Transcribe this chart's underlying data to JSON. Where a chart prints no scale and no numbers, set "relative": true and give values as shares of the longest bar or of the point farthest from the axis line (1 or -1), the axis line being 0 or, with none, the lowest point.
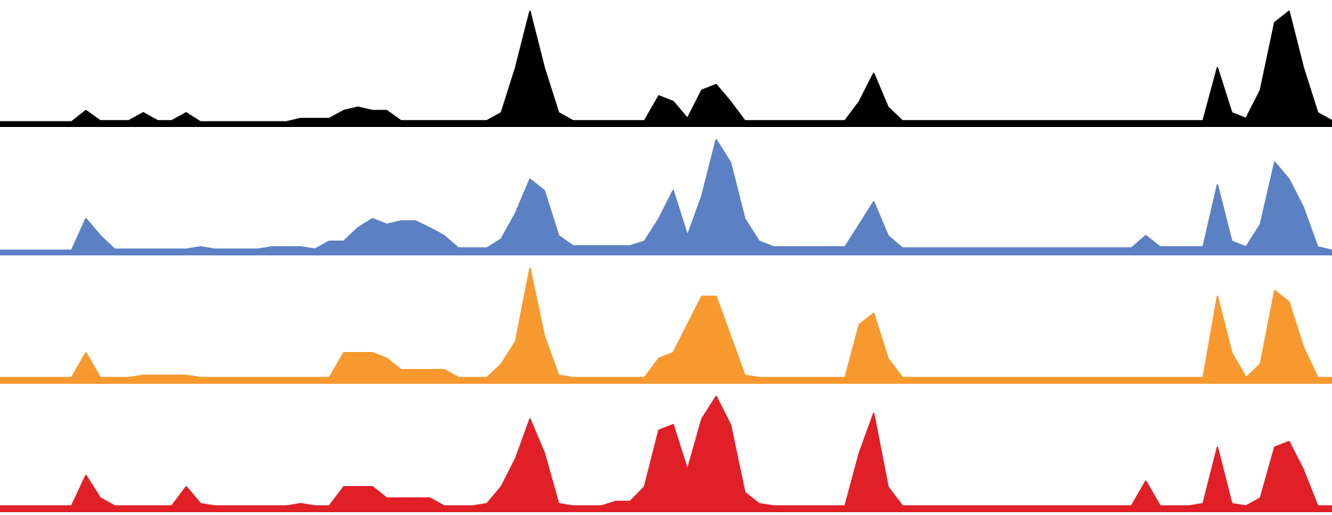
{
  "chart_data": [
    {
      "type": "area",
      "relative": true,
      "color": "#000000",
      "categories": [
        null,
        null,
        null,
        null,
        null,
        null,
        null,
        null,
        null,
        null,
        null,
        null,
        null,
        null,
        null,
        null,
        null,
        null,
        null,
        null,
        null,
        null,
        null,
        null,
        null,
        null,
        null,
        null,
        null,
        null,
        null,
        null,
        null,
        null,
        null,
        null,
        null,
        null,
        null,
        null,
        null,
        null,
        null,
        null,
        null,
        null,
        null,
        null,
        null,
        null,
        null,
        null,
        null,
        null,
        null,
        null,
        null,
        null,
        null,
        null,
        null,
        null,
        null,
        null,
        null,
        null,
        null,
        null,
        null,
        null,
        null,
        null,
        null,
        null,
        null,
        null,
        null,
        null,
        null,
        null,
        null,
        null,
        null,
        null,
        null,
        null,
        null,
        null,
        null,
        null,
        null,
        null,
        null,
        null
      ],
      "values": [
        0.02,
        0.02,
        0.02,
        0.02,
        0.02,
        0.02,
        0.12,
        0.03,
        0.03,
        0.03,
        0.1,
        0.03,
        0.03,
        0.1,
        0.02,
        0.02,
        0.02,
        0.02,
        0.02,
        0.02,
        0.02,
        0.05,
        0.05,
        0.05,
        0.12,
        0.15,
        0.12,
        0.12,
        0.03,
        0.03,
        0.03,
        0.03,
        0.03,
        0.03,
        0.03,
        0.1,
        0.5,
        1,
        0.5,
        0.1,
        0.03,
        0.03,
        0.03,
        0.03,
        0.03,
        0.03,
        0.25,
        0.2,
        0.05,
        0.3,
        0.35,
        0.2,
        0.03,
        0.03,
        0.03,
        0.03,
        0.03,
        0.03,
        0.03,
        0.03,
        0.2,
        0.45,
        0.15,
        0.03,
        0.03,
        0.03,
        0.03,
        0.03,
        0.03,
        0.03,
        0.03,
        0.03,
        0.03,
        0.03,
        0.03,
        0.03,
        0.03,
        0.03,
        0.03,
        0.03,
        0.03,
        0.03,
        0.03,
        0.03,
        0.03,
        0.5,
        0.1,
        0.05,
        0.3,
        0.9,
        1,
        0.5,
        0.1,
        0.03
      ]
    },
    {
      "type": "area",
      "relative": true,
      "color": "#5b80c3",
      "categories": [
        null,
        null,
        null,
        null,
        null,
        null,
        null,
        null,
        null,
        null,
        null,
        null,
        null,
        null,
        null,
        null,
        null,
        null,
        null,
        null,
        null,
        null,
        null,
        null,
        null,
        null,
        null,
        null,
        null,
        null,
        null,
        null,
        null,
        null,
        null,
        null,
        null,
        null,
        null,
        null,
        null,
        null,
        null,
        null,
        null,
        null,
        null,
        null,
        null,
        null,
        null,
        null,
        null,
        null,
        null,
        null,
        null,
        null,
        null,
        null,
        null,
        null,
        null,
        null,
        null,
        null,
        null,
        null,
        null,
        null,
        null,
        null,
        null,
        null,
        null,
        null,
        null,
        null,
        null,
        null,
        null,
        null,
        null,
        null,
        null,
        null,
        null,
        null,
        null,
        null,
        null,
        null,
        null,
        null
      ],
      "values": [
        0.02,
        0.02,
        0.02,
        0.02,
        0.02,
        0.02,
        0.3,
        0.15,
        0.03,
        0.03,
        0.03,
        0.03,
        0.03,
        0.03,
        0.05,
        0.03,
        0.03,
        0.03,
        0.03,
        0.05,
        0.05,
        0.05,
        0.03,
        0.1,
        0.1,
        0.22,
        0.3,
        0.25,
        0.28,
        0.28,
        0.22,
        0.15,
        0.04,
        0.04,
        0.04,
        0.12,
        0.35,
        0.65,
        0.55,
        0.15,
        0.06,
        0.06,
        0.06,
        0.06,
        0.06,
        0.1,
        0.3,
        0.55,
        0.15,
        0.5,
        1,
        0.8,
        0.3,
        0.1,
        0.05,
        0.05,
        0.05,
        0.05,
        0.05,
        0.05,
        0.25,
        0.45,
        0.15,
        0.04,
        0.04,
        0.04,
        0.04,
        0.04,
        0.04,
        0.04,
        0.04,
        0.04,
        0.04,
        0.04,
        0.04,
        0.04,
        0.04,
        0.04,
        0.04,
        0.04,
        0.15,
        0.05,
        0.05,
        0.05,
        0.05,
        0.6,
        0.1,
        0.05,
        0.25,
        0.8,
        0.65,
        0.4,
        0.05,
        0.02
      ]
    },
    {
      "type": "area",
      "relative": true,
      "color": "#f7992f",
      "categories": [
        null,
        null,
        null,
        null,
        null,
        null,
        null,
        null,
        null,
        null,
        null,
        null,
        null,
        null,
        null,
        null,
        null,
        null,
        null,
        null,
        null,
        null,
        null,
        null,
        null,
        null,
        null,
        null,
        null,
        null,
        null,
        null,
        null,
        null,
        null,
        null,
        null,
        null,
        null,
        null,
        null,
        null,
        null,
        null,
        null,
        null,
        null,
        null,
        null,
        null,
        null,
        null,
        null,
        null,
        null,
        null,
        null,
        null,
        null,
        null,
        null,
        null,
        null,
        null,
        null,
        null,
        null,
        null,
        null,
        null,
        null,
        null,
        null,
        null,
        null,
        null,
        null,
        null,
        null,
        null,
        null,
        null,
        null,
        null,
        null,
        null,
        null,
        null,
        null,
        null,
        null,
        null,
        null,
        null
      ],
      "values": [
        0.03,
        0.03,
        0.03,
        0.03,
        0.03,
        0.03,
        0.25,
        0.03,
        0.03,
        0.03,
        0.05,
        0.05,
        0.05,
        0.05,
        0.03,
        0.03,
        0.03,
        0.03,
        0.03,
        0.03,
        0.03,
        0.03,
        0.03,
        0.03,
        0.25,
        0.25,
        0.25,
        0.2,
        0.1,
        0.1,
        0.1,
        0.1,
        0.03,
        0.03,
        0.03,
        0.15,
        0.35,
        1,
        0.4,
        0.05,
        0.03,
        0.03,
        0.03,
        0.03,
        0.03,
        0.03,
        0.2,
        0.25,
        0.5,
        0.75,
        0.75,
        0.4,
        0.05,
        0.03,
        0.03,
        0.03,
        0.03,
        0.03,
        0.03,
        0.03,
        0.5,
        0.6,
        0.2,
        0.03,
        0.03,
        0.03,
        0.03,
        0.03,
        0.03,
        0.03,
        0.03,
        0.03,
        0.03,
        0.03,
        0.03,
        0.03,
        0.03,
        0.03,
        0.03,
        0.03,
        0.03,
        0.03,
        0.03,
        0.03,
        0.03,
        0.75,
        0.25,
        0.03,
        0.15,
        0.8,
        0.7,
        0.3,
        0.03,
        0.03
      ]
    },
    {
      "type": "area",
      "relative": true,
      "color": "#e11f27",
      "categories": [
        null,
        null,
        null,
        null,
        null,
        null,
        null,
        null,
        null,
        null,
        null,
        null,
        null,
        null,
        null,
        null,
        null,
        null,
        null,
        null,
        null,
        null,
        null,
        null,
        null,
        null,
        null,
        null,
        null,
        null,
        null,
        null,
        null,
        null,
        null,
        null,
        null,
        null,
        null,
        null,
        null,
        null,
        null,
        null,
        null,
        null,
        null,
        null,
        null,
        null,
        null,
        null,
        null,
        null,
        null,
        null,
        null,
        null,
        null,
        null,
        null,
        null,
        null,
        null,
        null,
        null,
        null,
        null,
        null,
        null,
        null,
        null,
        null,
        null,
        null,
        null,
        null,
        null,
        null,
        null,
        null,
        null,
        null,
        null,
        null,
        null,
        null,
        null,
        null,
        null,
        null,
        null,
        null,
        null
      ],
      "values": [
        0.03,
        0.03,
        0.03,
        0.03,
        0.03,
        0.03,
        0.3,
        0.1,
        0.03,
        0.03,
        0.03,
        0.03,
        0.03,
        0.2,
        0.05,
        0.03,
        0.03,
        0.03,
        0.03,
        0.03,
        0.03,
        0.05,
        0.03,
        0.03,
        0.2,
        0.2,
        0.2,
        0.1,
        0.1,
        0.1,
        0.1,
        0.03,
        0.03,
        0.03,
        0.05,
        0.2,
        0.45,
        0.8,
        0.5,
        0.05,
        0.03,
        0.03,
        0.03,
        0.07,
        0.07,
        0.2,
        0.7,
        0.75,
        0.35,
        0.8,
        1,
        0.75,
        0.15,
        0.05,
        0.03,
        0.03,
        0.03,
        0.03,
        0.03,
        0.03,
        0.5,
        0.85,
        0.2,
        0.03,
        0.03,
        0.03,
        0.03,
        0.03,
        0.03,
        0.03,
        0.03,
        0.03,
        0.03,
        0.03,
        0.03,
        0.03,
        0.03,
        0.03,
        0.03,
        0.03,
        0.25,
        0.03,
        0.03,
        0.03,
        0.05,
        0.55,
        0.05,
        0.03,
        0.1,
        0.55,
        0.6,
        0.35,
        0.03,
        0.03
      ]
    }
  ]
}
